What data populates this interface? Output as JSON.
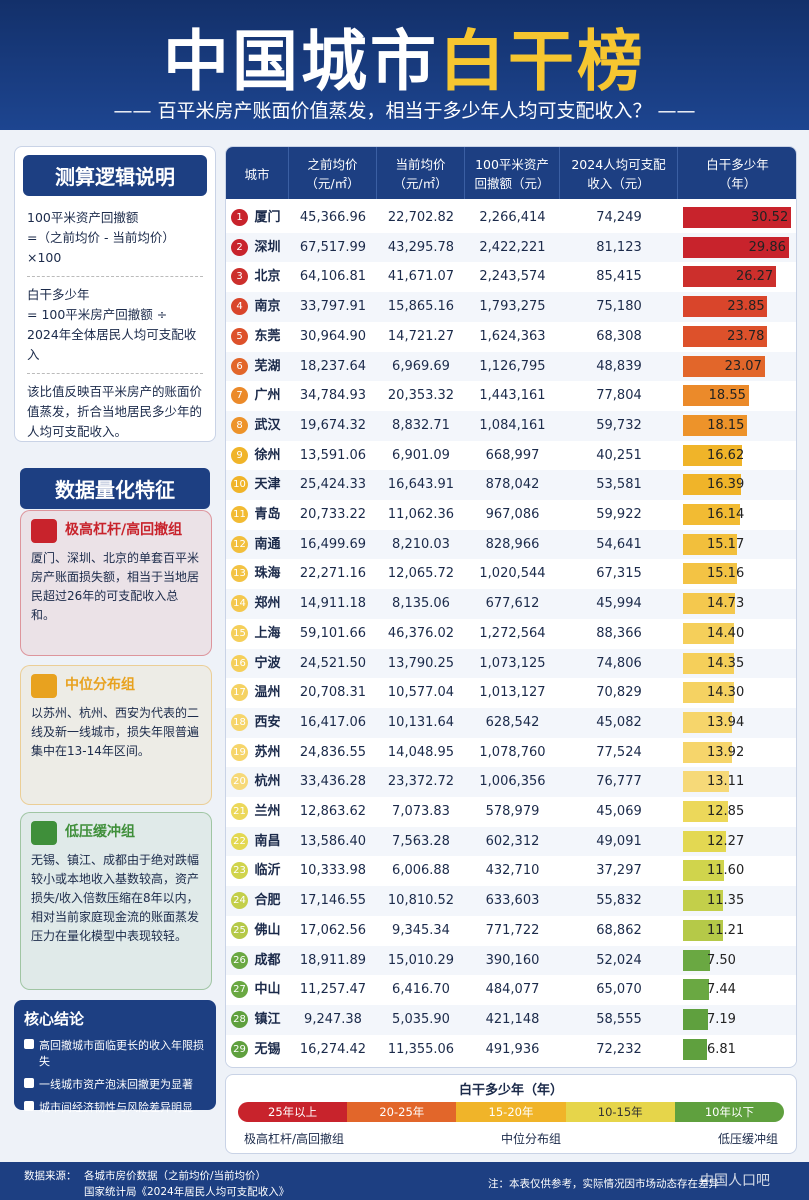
{
  "header": {
    "title_main": "中国城市",
    "title_highlight": "白干榜",
    "subtitle": "百平米房产账面价值蒸发，相当于多少年人均可支配收入？"
  },
  "logic": {
    "title": "测算逻辑说明",
    "lines": [
      "100平米资产回撤额",
      "=（之前均价 - 当前均价）×100",
      "白干多少年",
      "= 100平米房产回撤额 ÷",
      "2024年全体居民人均可支配收入",
      "该比值反映百平米房产的账面价值蒸发，折合当地居民多少年的人均可支配收入。"
    ]
  },
  "features": {
    "title": "数据量化特征",
    "cards": [
      {
        "title": "极高杠杆/高回撤组",
        "text": "厦门、深圳、北京的单套百平米房产账面损失额，相当于当地居民超过26年的可支配收入总和。",
        "color": "#c8232c"
      },
      {
        "title": "中位分布组",
        "text": "以苏州、杭州、西安为代表的二线及新一线城市，损失年限普遍集中在13-14年区间。",
        "color": "#e8a21f"
      },
      {
        "title": "低压缓冲组",
        "text": "无锡、镇江、成都由于绝对跌幅较小或本地收入基数较高，资产损失/收入倍数压缩在8年以内，相对当前家庭现金流的账面蒸发压力在量化模型中表现较轻。",
        "color": "#3f8f3a"
      }
    ]
  },
  "conclusion": {
    "title": "核心结论",
    "bullets": [
      "高回撤城市面临更长的收入年限损失",
      "一线城市资产泡沫回撤更为显著",
      "城市间经济韧性与风险差异明显"
    ]
  },
  "table": {
    "headers": [
      [
        "城市"
      ],
      [
        "之前均价",
        "（元/㎡）"
      ],
      [
        "当前均价",
        "（元/㎡）"
      ],
      [
        "100平米资产",
        "回撤额（元）"
      ],
      [
        "2024人均可支配",
        "收入（元）"
      ],
      [
        "白干多少年",
        "（年）"
      ]
    ],
    "rows": [
      {
        "rank": "1",
        "city": "厦门",
        "prev": "45,366.96",
        "curr": "22,702.82",
        "loss": "2,266,414",
        "income": "74,249",
        "years": "30.52",
        "color": "#c8232c"
      },
      {
        "rank": "2",
        "city": "深圳",
        "prev": "67,517.99",
        "curr": "43,295.78",
        "loss": "2,422,221",
        "income": "81,123",
        "years": "29.86",
        "color": "#c8232c"
      },
      {
        "rank": "3",
        "city": "北京",
        "prev": "64,106.81",
        "curr": "41,671.07",
        "loss": "2,243,574",
        "income": "85,415",
        "years": "26.27",
        "color": "#cc2f2c"
      },
      {
        "rank": "4",
        "city": "南京",
        "prev": "33,797.91",
        "curr": "15,865.16",
        "loss": "1,793,275",
        "income": "75,180",
        "years": "23.85",
        "color": "#d9452b"
      },
      {
        "rank": "5",
        "city": "东莞",
        "prev": "30,964.90",
        "curr": "14,721.27",
        "loss": "1,624,363",
        "income": "68,308",
        "years": "23.78",
        "color": "#dd512b"
      },
      {
        "rank": "6",
        "city": "芜湖",
        "prev": "18,237.64",
        "curr": "6,969.69",
        "loss": "1,126,795",
        "income": "48,839",
        "years": "23.07",
        "color": "#e2662a"
      },
      {
        "rank": "7",
        "city": "广州",
        "prev": "34,784.93",
        "curr": "20,353.32",
        "loss": "1,443,161",
        "income": "77,804",
        "years": "18.55",
        "color": "#eb8a2a"
      },
      {
        "rank": "8",
        "city": "武汉",
        "prev": "19,674.32",
        "curr": "8,832.71",
        "loss": "1,084,161",
        "income": "59,732",
        "years": "18.15",
        "color": "#ed932a"
      },
      {
        "rank": "9",
        "city": "徐州",
        "prev": "13,591.06",
        "curr": "6,901.09",
        "loss": "668,997",
        "income": "40,251",
        "years": "16.62",
        "color": "#f0b429"
      },
      {
        "rank": "10",
        "city": "天津",
        "prev": "25,424.33",
        "curr": "16,643.91",
        "loss": "878,042",
        "income": "53,581",
        "years": "16.39",
        "color": "#f0b429"
      },
      {
        "rank": "11",
        "city": "青岛",
        "prev": "20,733.22",
        "curr": "11,062.36",
        "loss": "967,086",
        "income": "59,922",
        "years": "16.14",
        "color": "#f2bb33"
      },
      {
        "rank": "12",
        "city": "南通",
        "prev": "16,499.69",
        "curr": "8,210.03",
        "loss": "828,966",
        "income": "54,641",
        "years": "15.17",
        "color": "#f2bf3c"
      },
      {
        "rank": "13",
        "city": "珠海",
        "prev": "22,271.16",
        "curr": "12,065.72",
        "loss": "1,020,544",
        "income": "67,315",
        "years": "15.16",
        "color": "#f3c344"
      },
      {
        "rank": "14",
        "city": "郑州",
        "prev": "14,911.18",
        "curr": "8,135.06",
        "loss": "677,612",
        "income": "45,994",
        "years": "14.73",
        "color": "#f4c84e"
      },
      {
        "rank": "15",
        "city": "上海",
        "prev": "59,101.66",
        "curr": "46,376.02",
        "loss": "1,272,564",
        "income": "88,366",
        "years": "14.40",
        "color": "#f5cf5a"
      },
      {
        "rank": "16",
        "city": "宁波",
        "prev": "24,521.50",
        "curr": "13,790.25",
        "loss": "1,073,125",
        "income": "74,806",
        "years": "14.35",
        "color": "#f5cf5a"
      },
      {
        "rank": "17",
        "city": "温州",
        "prev": "20,708.31",
        "curr": "10,577.04",
        "loss": "1,013,127",
        "income": "70,829",
        "years": "14.30",
        "color": "#f5d262"
      },
      {
        "rank": "18",
        "city": "西安",
        "prev": "16,417.06",
        "curr": "10,131.64",
        "loss": "628,542",
        "income": "45,082",
        "years": "13.94",
        "color": "#f6d56b"
      },
      {
        "rank": "19",
        "city": "苏州",
        "prev": "24,836.55",
        "curr": "14,048.95",
        "loss": "1,078,760",
        "income": "77,524",
        "years": "13.92",
        "color": "#f6d56b"
      },
      {
        "rank": "20",
        "city": "杭州",
        "prev": "33,436.28",
        "curr": "23,372.72",
        "loss": "1,006,356",
        "income": "76,777",
        "years": "13.11",
        "color": "#f6d978"
      },
      {
        "rank": "21",
        "city": "兰州",
        "prev": "12,863.62",
        "curr": "7,073.83",
        "loss": "578,979",
        "income": "45,069",
        "years": "12.85",
        "color": "#ecd85a"
      },
      {
        "rank": "22",
        "city": "南昌",
        "prev": "13,586.40",
        "curr": "7,563.28",
        "loss": "602,312",
        "income": "49,091",
        "years": "12.27",
        "color": "#e3d852"
      },
      {
        "rank": "23",
        "city": "临沂",
        "prev": "10,333.98",
        "curr": "6,006.88",
        "loss": "432,710",
        "income": "37,297",
        "years": "11.60",
        "color": "#d0d44c"
      },
      {
        "rank": "24",
        "city": "合肥",
        "prev": "17,146.55",
        "curr": "10,810.52",
        "loss": "633,603",
        "income": "55,832",
        "years": "11.35",
        "color": "#c3cf4a"
      },
      {
        "rank": "25",
        "city": "佛山",
        "prev": "17,062.56",
        "curr": "9,345.34",
        "loss": "771,722",
        "income": "68,862",
        "years": "11.21",
        "color": "#b5c948"
      },
      {
        "rank": "26",
        "city": "成都",
        "prev": "18,911.89",
        "curr": "15,010.29",
        "loss": "390,160",
        "income": "52,024",
        "years": "7.50",
        "color": "#6aa842"
      },
      {
        "rank": "27",
        "city": "中山",
        "prev": "11,257.47",
        "curr": "6,416.70",
        "loss": "484,077",
        "income": "65,070",
        "years": "7.44",
        "color": "#6aa842"
      },
      {
        "rank": "28",
        "city": "镇江",
        "prev": "9,247.38",
        "curr": "5,035.90",
        "loss": "421,148",
        "income": "58,555",
        "years": "7.19",
        "color": "#5fa03e"
      },
      {
        "rank": "29",
        "city": "无锡",
        "prev": "16,274.42",
        "curr": "11,355.06",
        "loss": "491,936",
        "income": "72,232",
        "years": "6.81",
        "color": "#5fa03e"
      }
    ]
  },
  "legend": {
    "title": "白干多少年（年）",
    "segments": [
      {
        "label": "25年以上",
        "color": "#c8232c"
      },
      {
        "label": "20-25年",
        "color": "#e2662a"
      },
      {
        "label": "15-20年",
        "color": "#f0b429"
      },
      {
        "label": "10-15年",
        "color": "#e6d54a"
      },
      {
        "label": "10年以下",
        "color": "#5fa03e"
      }
    ],
    "groups": [
      "极高杠杆/高回撤组",
      "中位分布组",
      "低压缓冲组"
    ]
  },
  "footer": {
    "source_label": "数据来源：",
    "sources": [
      "各城市房价数据（之前均价/当前均价）",
      "国家统计局《2024年居民人均可支配收入》"
    ],
    "note": "注：本表仅供参考，实际情况因市场动态存在差异",
    "watermark": "中国人口吧"
  }
}
